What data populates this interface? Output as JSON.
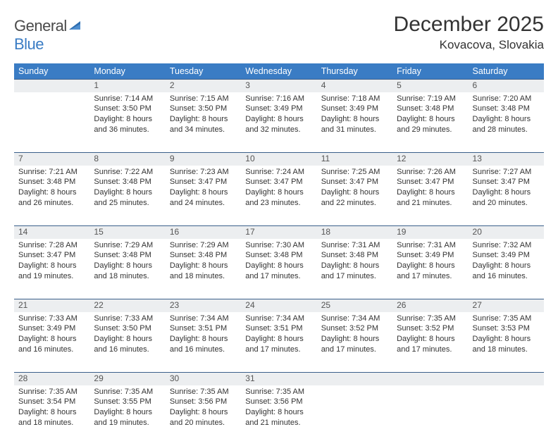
{
  "logo": {
    "text1": "General",
    "text2": "Blue"
  },
  "title": "December 2025",
  "location": "Kovacova, Slovakia",
  "colors": {
    "header_bg": "#3a7cc4",
    "daynum_bg": "#eceef0",
    "rule": "#3a5f8a",
    "text": "#333333"
  },
  "weekdays": [
    "Sunday",
    "Monday",
    "Tuesday",
    "Wednesday",
    "Thursday",
    "Friday",
    "Saturday"
  ],
  "weeks": [
    {
      "nums": [
        "",
        "1",
        "2",
        "3",
        "4",
        "5",
        "6"
      ],
      "cells": [
        null,
        {
          "sr": "Sunrise: 7:14 AM",
          "ss": "Sunset: 3:50 PM",
          "d1": "Daylight: 8 hours",
          "d2": "and 36 minutes."
        },
        {
          "sr": "Sunrise: 7:15 AM",
          "ss": "Sunset: 3:50 PM",
          "d1": "Daylight: 8 hours",
          "d2": "and 34 minutes."
        },
        {
          "sr": "Sunrise: 7:16 AM",
          "ss": "Sunset: 3:49 PM",
          "d1": "Daylight: 8 hours",
          "d2": "and 32 minutes."
        },
        {
          "sr": "Sunrise: 7:18 AM",
          "ss": "Sunset: 3:49 PM",
          "d1": "Daylight: 8 hours",
          "d2": "and 31 minutes."
        },
        {
          "sr": "Sunrise: 7:19 AM",
          "ss": "Sunset: 3:48 PM",
          "d1": "Daylight: 8 hours",
          "d2": "and 29 minutes."
        },
        {
          "sr": "Sunrise: 7:20 AM",
          "ss": "Sunset: 3:48 PM",
          "d1": "Daylight: 8 hours",
          "d2": "and 28 minutes."
        }
      ]
    },
    {
      "nums": [
        "7",
        "8",
        "9",
        "10",
        "11",
        "12",
        "13"
      ],
      "cells": [
        {
          "sr": "Sunrise: 7:21 AM",
          "ss": "Sunset: 3:48 PM",
          "d1": "Daylight: 8 hours",
          "d2": "and 26 minutes."
        },
        {
          "sr": "Sunrise: 7:22 AM",
          "ss": "Sunset: 3:48 PM",
          "d1": "Daylight: 8 hours",
          "d2": "and 25 minutes."
        },
        {
          "sr": "Sunrise: 7:23 AM",
          "ss": "Sunset: 3:47 PM",
          "d1": "Daylight: 8 hours",
          "d2": "and 24 minutes."
        },
        {
          "sr": "Sunrise: 7:24 AM",
          "ss": "Sunset: 3:47 PM",
          "d1": "Daylight: 8 hours",
          "d2": "and 23 minutes."
        },
        {
          "sr": "Sunrise: 7:25 AM",
          "ss": "Sunset: 3:47 PM",
          "d1": "Daylight: 8 hours",
          "d2": "and 22 minutes."
        },
        {
          "sr": "Sunrise: 7:26 AM",
          "ss": "Sunset: 3:47 PM",
          "d1": "Daylight: 8 hours",
          "d2": "and 21 minutes."
        },
        {
          "sr": "Sunrise: 7:27 AM",
          "ss": "Sunset: 3:47 PM",
          "d1": "Daylight: 8 hours",
          "d2": "and 20 minutes."
        }
      ]
    },
    {
      "nums": [
        "14",
        "15",
        "16",
        "17",
        "18",
        "19",
        "20"
      ],
      "cells": [
        {
          "sr": "Sunrise: 7:28 AM",
          "ss": "Sunset: 3:47 PM",
          "d1": "Daylight: 8 hours",
          "d2": "and 19 minutes."
        },
        {
          "sr": "Sunrise: 7:29 AM",
          "ss": "Sunset: 3:48 PM",
          "d1": "Daylight: 8 hours",
          "d2": "and 18 minutes."
        },
        {
          "sr": "Sunrise: 7:29 AM",
          "ss": "Sunset: 3:48 PM",
          "d1": "Daylight: 8 hours",
          "d2": "and 18 minutes."
        },
        {
          "sr": "Sunrise: 7:30 AM",
          "ss": "Sunset: 3:48 PM",
          "d1": "Daylight: 8 hours",
          "d2": "and 17 minutes."
        },
        {
          "sr": "Sunrise: 7:31 AM",
          "ss": "Sunset: 3:48 PM",
          "d1": "Daylight: 8 hours",
          "d2": "and 17 minutes."
        },
        {
          "sr": "Sunrise: 7:31 AM",
          "ss": "Sunset: 3:49 PM",
          "d1": "Daylight: 8 hours",
          "d2": "and 17 minutes."
        },
        {
          "sr": "Sunrise: 7:32 AM",
          "ss": "Sunset: 3:49 PM",
          "d1": "Daylight: 8 hours",
          "d2": "and 16 minutes."
        }
      ]
    },
    {
      "nums": [
        "21",
        "22",
        "23",
        "24",
        "25",
        "26",
        "27"
      ],
      "cells": [
        {
          "sr": "Sunrise: 7:33 AM",
          "ss": "Sunset: 3:49 PM",
          "d1": "Daylight: 8 hours",
          "d2": "and 16 minutes."
        },
        {
          "sr": "Sunrise: 7:33 AM",
          "ss": "Sunset: 3:50 PM",
          "d1": "Daylight: 8 hours",
          "d2": "and 16 minutes."
        },
        {
          "sr": "Sunrise: 7:34 AM",
          "ss": "Sunset: 3:51 PM",
          "d1": "Daylight: 8 hours",
          "d2": "and 16 minutes."
        },
        {
          "sr": "Sunrise: 7:34 AM",
          "ss": "Sunset: 3:51 PM",
          "d1": "Daylight: 8 hours",
          "d2": "and 17 minutes."
        },
        {
          "sr": "Sunrise: 7:34 AM",
          "ss": "Sunset: 3:52 PM",
          "d1": "Daylight: 8 hours",
          "d2": "and 17 minutes."
        },
        {
          "sr": "Sunrise: 7:35 AM",
          "ss": "Sunset: 3:52 PM",
          "d1": "Daylight: 8 hours",
          "d2": "and 17 minutes."
        },
        {
          "sr": "Sunrise: 7:35 AM",
          "ss": "Sunset: 3:53 PM",
          "d1": "Daylight: 8 hours",
          "d2": "and 18 minutes."
        }
      ]
    },
    {
      "nums": [
        "28",
        "29",
        "30",
        "31",
        "",
        "",
        ""
      ],
      "cells": [
        {
          "sr": "Sunrise: 7:35 AM",
          "ss": "Sunset: 3:54 PM",
          "d1": "Daylight: 8 hours",
          "d2": "and 18 minutes."
        },
        {
          "sr": "Sunrise: 7:35 AM",
          "ss": "Sunset: 3:55 PM",
          "d1": "Daylight: 8 hours",
          "d2": "and 19 minutes."
        },
        {
          "sr": "Sunrise: 7:35 AM",
          "ss": "Sunset: 3:56 PM",
          "d1": "Daylight: 8 hours",
          "d2": "and 20 minutes."
        },
        {
          "sr": "Sunrise: 7:35 AM",
          "ss": "Sunset: 3:56 PM",
          "d1": "Daylight: 8 hours",
          "d2": "and 21 minutes."
        },
        null,
        null,
        null
      ]
    }
  ]
}
